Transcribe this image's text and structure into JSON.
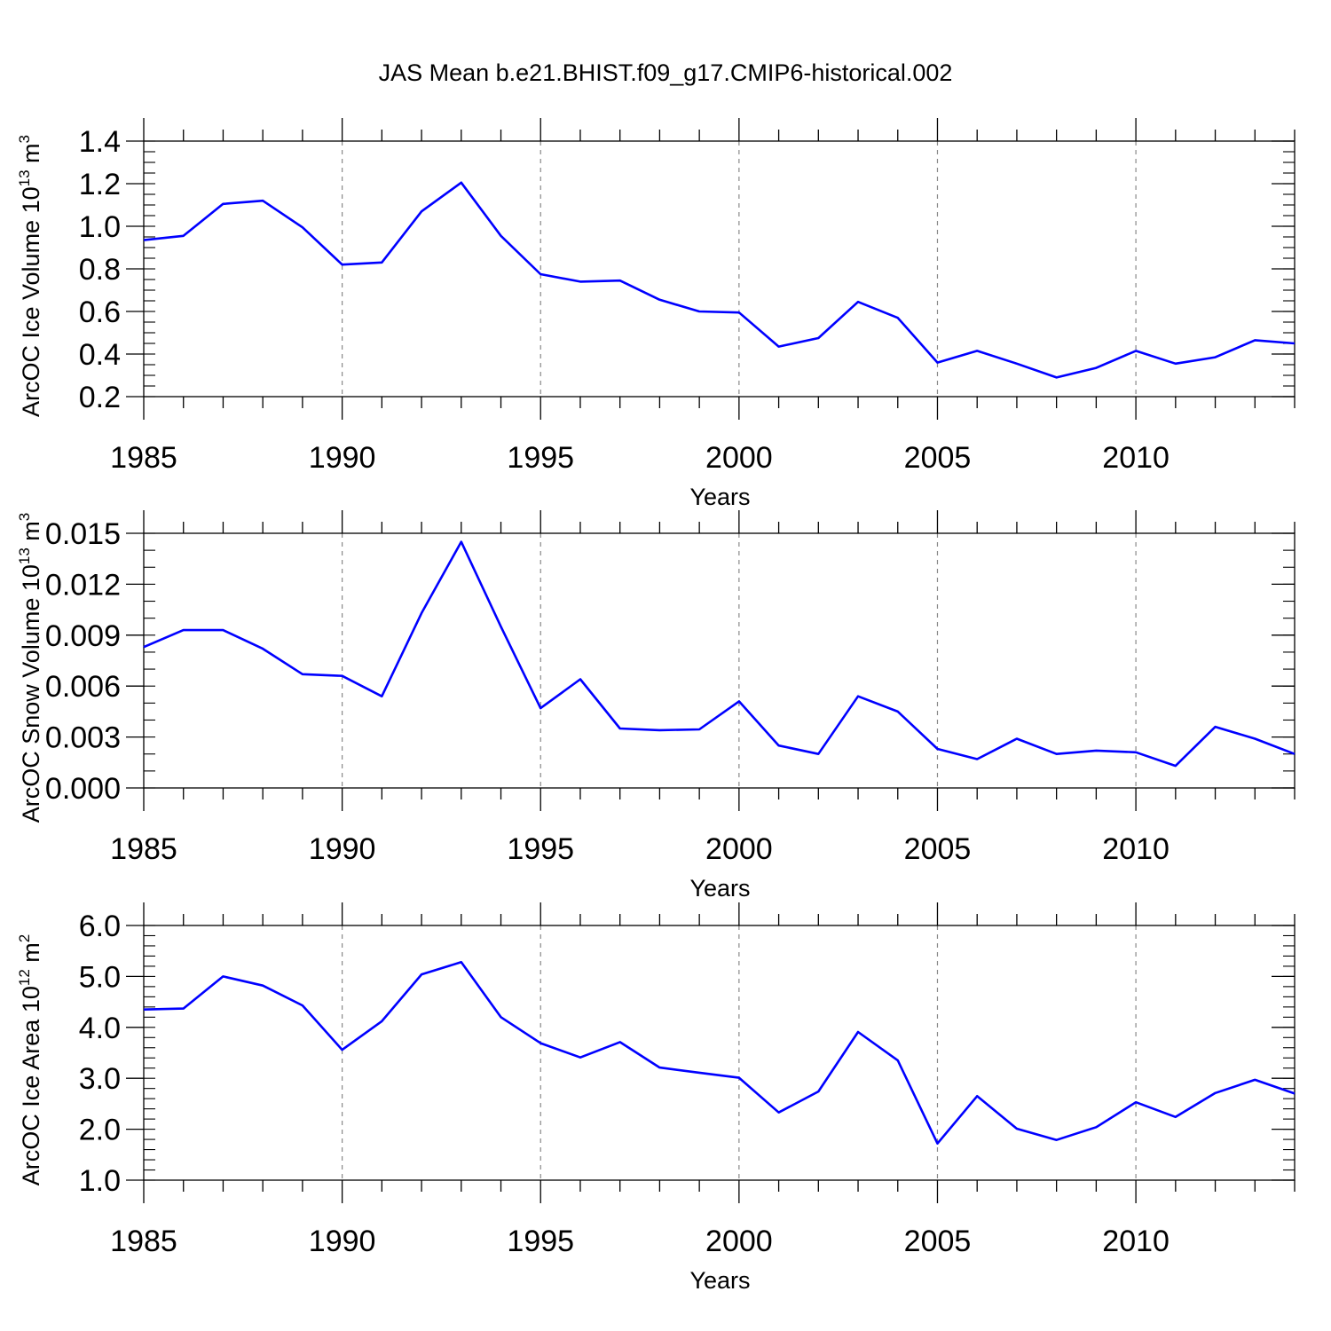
{
  "title": "JAS Mean b.e21.BHIST.f09_g17.CMIP6-historical.002",
  "colors": {
    "series": "#0000ff",
    "axis": "#000000",
    "grid": "#888888",
    "background": "#ffffff"
  },
  "chart_data": [
    {
      "type": "line",
      "ylabel": "ArcOC Ice Volume 10",
      "ylabel_exp": "13",
      "ylabel_unit": " m",
      "ylabel_unit_exp": "3",
      "xlabel": "Years",
      "xlim": [
        1985,
        2014
      ],
      "ylim": [
        0.2,
        1.4
      ],
      "yticks": [
        0.2,
        0.4,
        0.6,
        0.8,
        1.0,
        1.2,
        1.4
      ],
      "ytick_labels": [
        "0.2",
        "0.4",
        "0.6",
        "0.8",
        "1.0",
        "1.2",
        "1.4"
      ],
      "yminor_step": 0.05,
      "xticks": [
        1985,
        1990,
        1995,
        2000,
        2005,
        2010
      ],
      "xtick_labels": [
        "1985",
        "1990",
        "1995",
        "2000",
        "2005",
        "2010"
      ],
      "grid": "dashed vertical at major x ticks",
      "x": [
        1985,
        1986,
        1987,
        1988,
        1989,
        1990,
        1991,
        1992,
        1993,
        1994,
        1995,
        1996,
        1997,
        1998,
        1999,
        2000,
        2001,
        2002,
        2003,
        2004,
        2005,
        2006,
        2007,
        2008,
        2009,
        2010,
        2011,
        2012,
        2013,
        2014
      ],
      "series": [
        {
          "name": "ArcOC Ice Volume",
          "values": [
            0.935,
            0.955,
            1.105,
            1.12,
            0.995,
            0.82,
            0.83,
            1.07,
            1.205,
            0.955,
            0.775,
            0.74,
            0.745,
            0.655,
            0.6,
            0.595,
            0.435,
            0.475,
            0.645,
            0.57,
            0.36,
            0.415,
            0.355,
            0.29,
            0.335,
            0.415,
            0.355,
            0.385,
            0.465,
            0.45
          ]
        }
      ]
    },
    {
      "type": "line",
      "ylabel": "ArcOC Snow Volume 10",
      "ylabel_exp": "13",
      "ylabel_unit": " m",
      "ylabel_unit_exp": "3",
      "xlabel": "Years",
      "xlim": [
        1985,
        2014
      ],
      "ylim": [
        0.0,
        0.015
      ],
      "yticks": [
        0.0,
        0.003,
        0.006,
        0.009,
        0.012,
        0.015
      ],
      "ytick_labels": [
        "0.000",
        "0.003",
        "0.006",
        "0.009",
        "0.012",
        "0.015"
      ],
      "yminor_step": 0.001,
      "xticks": [
        1985,
        1990,
        1995,
        2000,
        2005,
        2010
      ],
      "xtick_labels": [
        "1985",
        "1990",
        "1995",
        "2000",
        "2005",
        "2010"
      ],
      "grid": "dashed vertical at major x ticks",
      "x": [
        1985,
        1986,
        1987,
        1988,
        1989,
        1990,
        1991,
        1992,
        1993,
        1994,
        1995,
        1996,
        1997,
        1998,
        1999,
        2000,
        2001,
        2002,
        2003,
        2004,
        2005,
        2006,
        2007,
        2008,
        2009,
        2010,
        2011,
        2012,
        2013,
        2014
      ],
      "series": [
        {
          "name": "ArcOC Snow Volume",
          "values": [
            0.0083,
            0.0093,
            0.0093,
            0.0082,
            0.0067,
            0.0066,
            0.0054,
            0.0103,
            0.0145,
            0.0095,
            0.0047,
            0.0064,
            0.0035,
            0.0034,
            0.00345,
            0.0051,
            0.0025,
            0.002,
            0.0054,
            0.0045,
            0.0023,
            0.0017,
            0.0029,
            0.002,
            0.0022,
            0.0021,
            0.0013,
            0.0036,
            0.0029,
            0.002
          ]
        }
      ]
    },
    {
      "type": "line",
      "ylabel": "ArcOC Ice Area 10",
      "ylabel_exp": "12",
      "ylabel_unit": " m",
      "ylabel_unit_exp": "2",
      "xlabel": "Years",
      "xlim": [
        1985,
        2014
      ],
      "ylim": [
        1.0,
        6.0
      ],
      "yticks": [
        1.0,
        2.0,
        3.0,
        4.0,
        5.0,
        6.0
      ],
      "ytick_labels": [
        "1.0",
        "2.0",
        "3.0",
        "4.0",
        "5.0",
        "6.0"
      ],
      "yminor_step": 0.2,
      "xticks": [
        1985,
        1990,
        1995,
        2000,
        2005,
        2010
      ],
      "xtick_labels": [
        "1985",
        "1990",
        "1995",
        "2000",
        "2005",
        "2010"
      ],
      "grid": "dashed vertical at major x ticks",
      "x": [
        1985,
        1986,
        1987,
        1988,
        1989,
        1990,
        1991,
        1992,
        1993,
        1994,
        1995,
        1996,
        1997,
        1998,
        1999,
        2000,
        2001,
        2002,
        2003,
        2004,
        2005,
        2006,
        2007,
        2008,
        2009,
        2010,
        2011,
        2012,
        2013,
        2014
      ],
      "series": [
        {
          "name": "ArcOC Ice Area",
          "values": [
            4.35,
            4.37,
            5.0,
            4.82,
            4.43,
            3.56,
            4.12,
            5.04,
            5.28,
            4.2,
            3.69,
            3.41,
            3.71,
            3.21,
            3.11,
            3.01,
            2.33,
            2.74,
            3.91,
            3.35,
            1.72,
            2.65,
            2.01,
            1.79,
            2.04,
            2.53,
            2.24,
            2.71,
            2.97,
            2.7
          ]
        }
      ]
    }
  ]
}
